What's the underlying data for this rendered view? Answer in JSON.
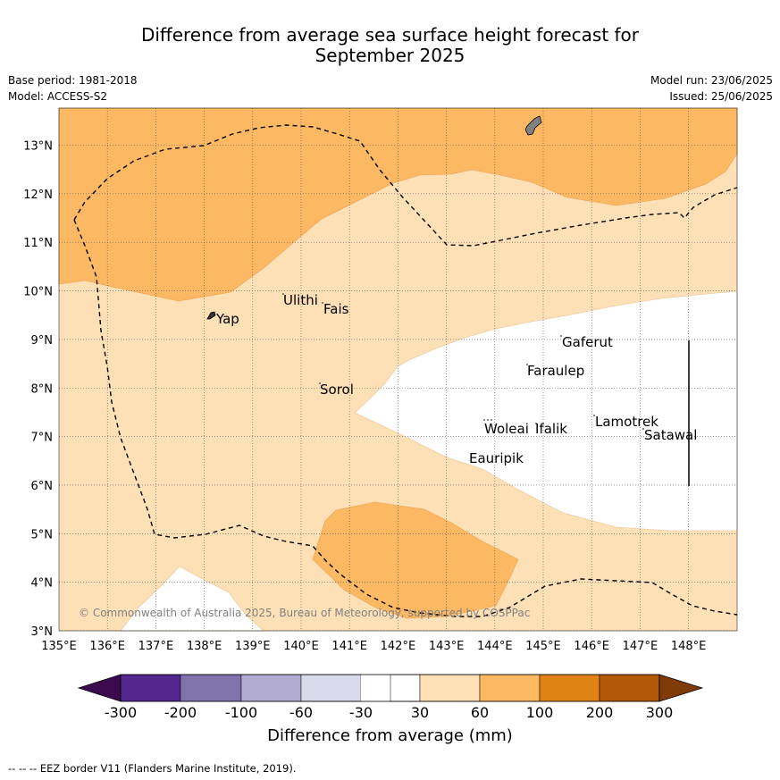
{
  "title_line1": "Difference from average sea surface height forecast for",
  "title_line2": "September 2025",
  "meta": {
    "base_period": "Base period: 1981-2018",
    "model": "Model: ACCESS-S2",
    "model_run": "Model run: 23/06/2025",
    "issued": "Issued: 25/06/2025"
  },
  "map": {
    "lon_ticks": [
      "135°E",
      "136°E",
      "137°E",
      "138°E",
      "139°E",
      "140°E",
      "141°E",
      "142°E",
      "143°E",
      "144°E",
      "145°E",
      "146°E",
      "147°E",
      "148°E"
    ],
    "lat_ticks": [
      "3°N",
      "4°N",
      "5°N",
      "6°N",
      "7°N",
      "8°N",
      "9°N",
      "10°N",
      "11°N",
      "12°N",
      "13°N"
    ],
    "places": [
      {
        "name": "Ulithi"
      },
      {
        "name": "Fais"
      },
      {
        "name": "Yap"
      },
      {
        "name": "Gaferut"
      },
      {
        "name": "Faraulep"
      },
      {
        "name": "Sorol"
      },
      {
        "name": "Lamotrek"
      },
      {
        "name": "Woleai"
      },
      {
        "name": "Ifalik"
      },
      {
        "name": "Satawal"
      },
      {
        "name": "Eauripik"
      }
    ],
    "copyright": "© Commonwealth of Australia 2025, Bureau of Meteorology, supported by COSPPac"
  },
  "colorbar": {
    "colors": {
      "below": "#3b0a4f",
      "c1": "#54278f",
      "c2": "#8073ac",
      "c3": "#b2abd2",
      "c4": "#d8daeb",
      "neutral": "#ffffff",
      "c6": "#fee0b6",
      "c7": "#fdb863",
      "c8": "#e08214",
      "c9": "#b35806",
      "above": "#7f3b08"
    },
    "labels": [
      "-300",
      "-200",
      "-100",
      "-60",
      "-30",
      "30",
      "60",
      "100",
      "200",
      "300"
    ],
    "title": "Difference from average (mm)"
  },
  "footer": "--  --  -- EEZ border V11 (Flanders Marine Institute, 2019)."
}
